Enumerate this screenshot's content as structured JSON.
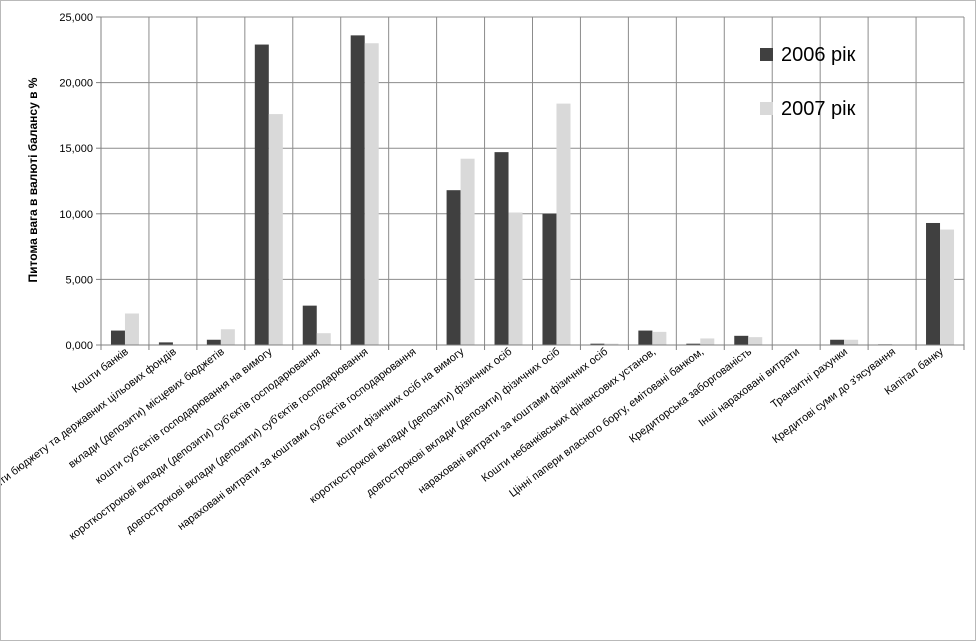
{
  "chart_data": {
    "type": "bar",
    "title": "",
    "xlabel": "",
    "ylabel": "Питома вага в валюті балансу в %",
    "ylim": [
      0,
      25
    ],
    "yticks": [
      0,
      5,
      10,
      15,
      20,
      25
    ],
    "ytick_labels": [
      "0,000",
      "5,000",
      "10,000",
      "15,000",
      "20,000",
      "25,000"
    ],
    "grid": true,
    "legend_position": "top-right",
    "categories": [
      "Кошти банків",
      "Кошти бюджету та державних цільових фондів",
      "вклади (депозити) місцевих бюджетів",
      "кошти суб'єктів господарювання на вимогу",
      "короткострокові вклади (депозити) суб'єктів господарювання",
      "довгострокові вклади (депозити) суб'єктів господарювання",
      "нараховані витрати за коштами суб'єктів господарювання",
      "кошти фізичних осіб на вимогу",
      "короткострокові вклади (депозити) фізичних осіб",
      "довгострокові вклади (депозити) фізичних осіб",
      "нараховані витрати за коштами фізичних осіб",
      "Кошти небанківських фінансових установ,",
      "Цінні папери власного боргу, емітовані банком,",
      "Кредиторська заборгованість",
      "Інші нараховані витрати",
      "Транзитні рахунки",
      "Кредитові суми до з'ясування",
      "Капітал банку"
    ],
    "series": [
      {
        "name": "2006 рік",
        "color": "#404040",
        "values": [
          1.1,
          0.2,
          0.4,
          22.9,
          3.0,
          23.6,
          0.0,
          11.8,
          14.7,
          10.0,
          0.1,
          1.1,
          0.1,
          0.7,
          0.0,
          0.4,
          0.05,
          9.3
        ]
      },
      {
        "name": "2007 рік",
        "color": "#d9d9d9",
        "values": [
          2.4,
          0.0,
          1.2,
          17.6,
          0.9,
          23.0,
          0.0,
          14.2,
          10.1,
          18.4,
          0.1,
          1.0,
          0.5,
          0.6,
          0.0,
          0.4,
          0.0,
          8.8
        ]
      }
    ]
  }
}
